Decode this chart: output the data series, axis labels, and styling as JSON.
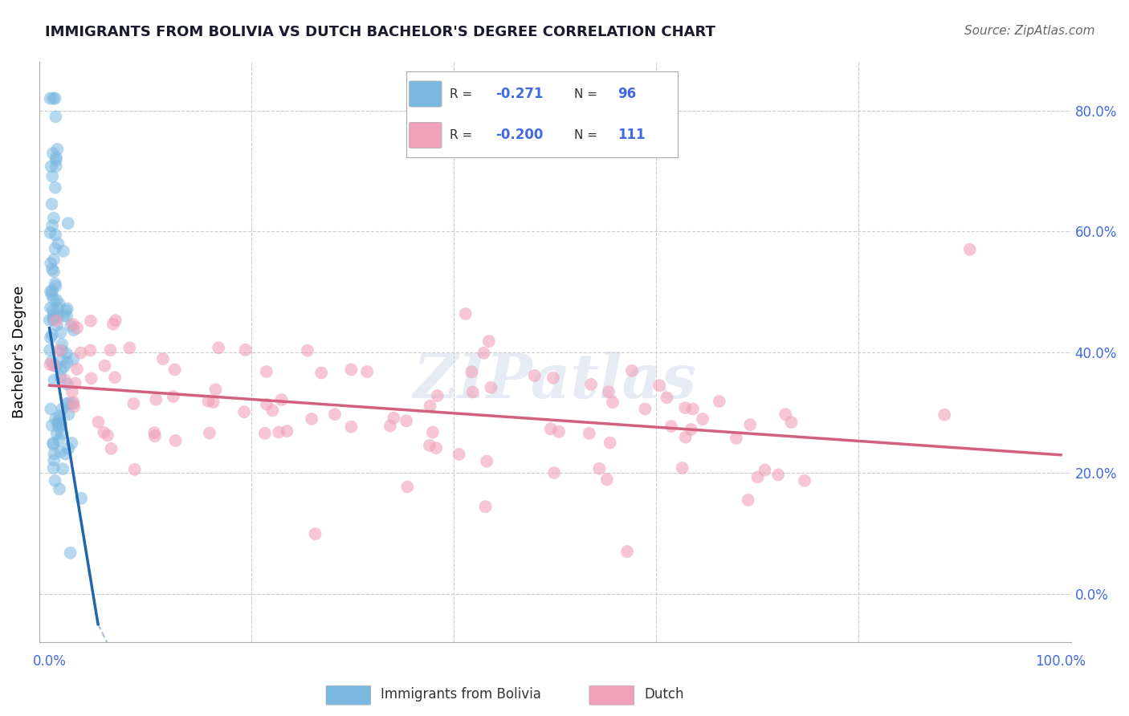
{
  "title": "IMMIGRANTS FROM BOLIVIA VS DUTCH BACHELOR'S DEGREE CORRELATION CHART",
  "source": "Source: ZipAtlas.com",
  "ylabel": "Bachelor's Degree",
  "ytick_labels": [
    "0.0%",
    "20.0%",
    "40.0%",
    "60.0%",
    "80.0%"
  ],
  "ytick_values": [
    0,
    20,
    40,
    60,
    80
  ],
  "xlim": [
    -1,
    101
  ],
  "ylim": [
    -8,
    88
  ],
  "R_blue": "-0.271",
  "N_blue": "96",
  "R_pink": "-0.200",
  "N_pink": "111",
  "blue_color": "#7ab8e0",
  "pink_color": "#f0a0b8",
  "blue_line_color": "#2166ac",
  "pink_line_color": "#d46080",
  "grid_color": "#cccccc",
  "axis_label_color": "#4169e1",
  "title_color": "#1a1a2e",
  "background_color": "#ffffff",
  "watermark": "ZIPatlas",
  "legend_label_blue": "Immigrants from Bolivia",
  "legend_label_pink": "Dutch",
  "n_blue": 96,
  "n_pink": 111,
  "blue_seed": 42,
  "pink_seed": 99
}
